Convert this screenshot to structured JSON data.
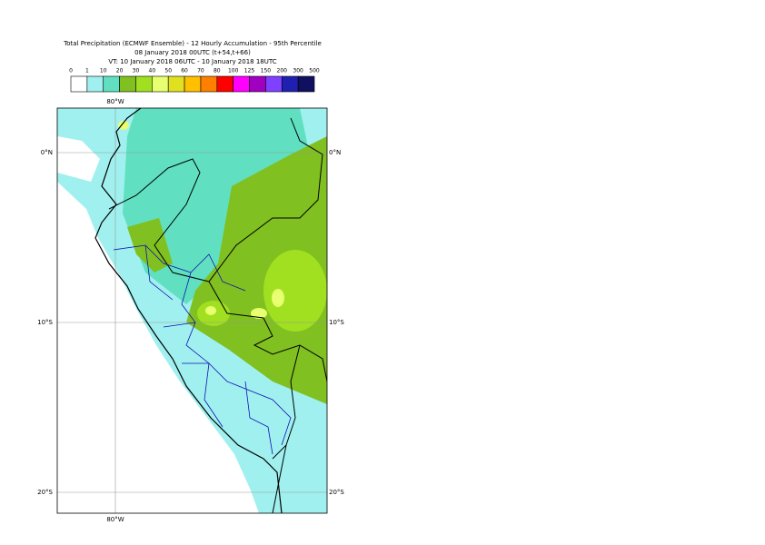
{
  "header": {
    "title_lines": [
      "Total Precipitation (ECMWF Ensemble) - 12 Hourly Accumulation - 95th Percentile",
      "08 January 2018 00UTC (t+54,t+66)",
      "VT: 10 January 2018 06UTC - 10 January 2018 18UTC"
    ]
  },
  "legend": {
    "labels": [
      "0",
      "1",
      "10",
      "20",
      "30",
      "40",
      "50",
      "60",
      "70",
      "80",
      "100",
      "125",
      "150",
      "200",
      "300",
      "500"
    ],
    "colors": [
      "#ffffff",
      "#a0f0f0",
      "#60e0c0",
      "#80c020",
      "#a0e020",
      "#e8ff70",
      "#e0e020",
      "#ffc000",
      "#ff8000",
      "#ff0000",
      "#ff00ff",
      "#a000c0",
      "#8040ff",
      "#2020b0",
      "#101060"
    ]
  },
  "map": {
    "lon_labels": [
      "80°W"
    ],
    "lat_labels": [
      "0°N",
      "10°S",
      "20°S"
    ]
  }
}
